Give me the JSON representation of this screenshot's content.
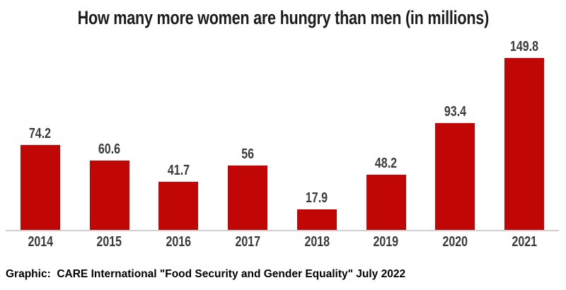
{
  "colors": {
    "background": "#ffffff",
    "bar": "#c10606",
    "title_text": "#1c1c1c",
    "label_text": "#3a3a3a",
    "axis_line": "#d0d0d0",
    "caption_text": "#000000"
  },
  "chart_data": {
    "type": "bar",
    "title": "How many more women are hungry than men (in millions)",
    "categories": [
      "2014",
      "2015",
      "2016",
      "2017",
      "2018",
      "2019",
      "2020",
      "2021"
    ],
    "values": [
      74.2,
      60.6,
      41.7,
      56,
      17.9,
      48.2,
      93.4,
      149.8
    ],
    "value_labels": [
      "74.2",
      "60.6",
      "41.7",
      "56",
      "17.9",
      "48.2",
      "93.4",
      "149.8"
    ],
    "xlabel": "",
    "ylabel": "",
    "ylim": [
      0,
      160
    ],
    "grid": false,
    "legend": false,
    "bar_color": "#c10606",
    "value_labels_position": "above-bars",
    "source_caption": "Graphic:  CARE International \"Food Security and Gender Equality\" July 2022"
  }
}
